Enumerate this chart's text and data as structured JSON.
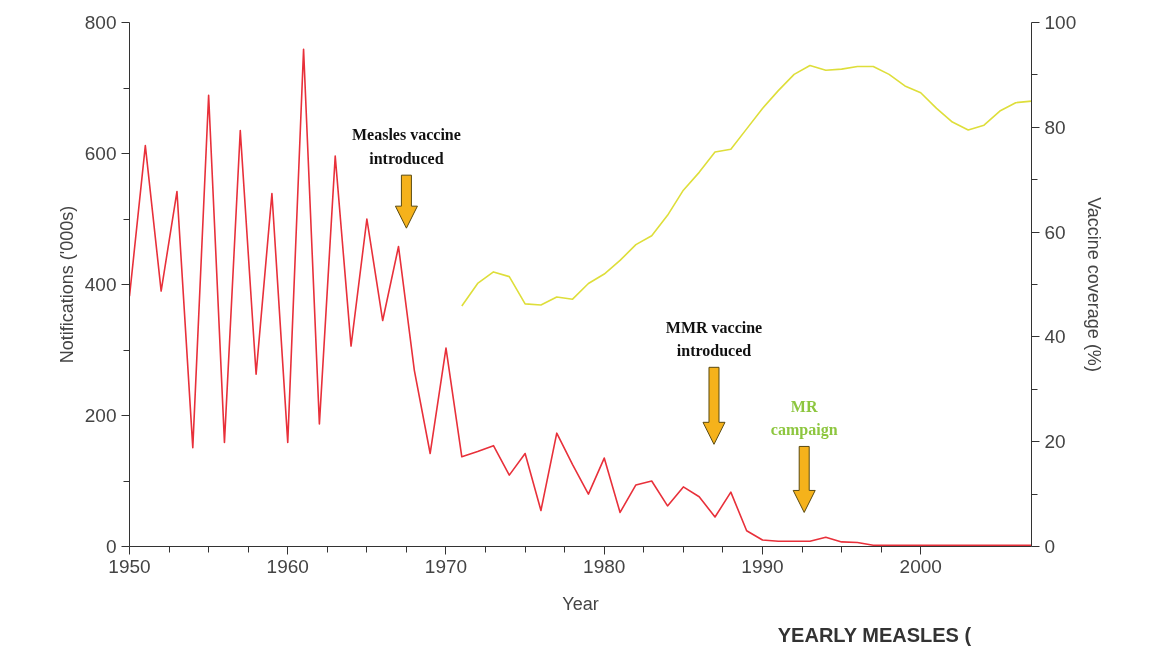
{
  "chart_data": {
    "type": "line",
    "xlabel": "Year",
    "ylabel": "Notifications ('000s)",
    "y2label": "Vaccine coverage (%)",
    "xlim": [
      1950,
      2007
    ],
    "xticks": [
      1950,
      1960,
      1970,
      1980,
      1990,
      2000
    ],
    "ylim": [
      0,
      800
    ],
    "yticks": [
      0,
      200,
      400,
      600,
      800
    ],
    "y2lim": [
      0,
      100
    ],
    "y2ticks": [
      0,
      20,
      40,
      60,
      80,
      100
    ],
    "grid": false,
    "marker": "none",
    "line_style": "solid",
    "series": [
      {
        "color": "#e8303a",
        "x": [
          1950,
          1951,
          1952,
          1953,
          1954,
          1955,
          1956,
          1957,
          1958,
          1959,
          1960,
          1961,
          1962,
          1963,
          1964,
          1965,
          1966,
          1967,
          1968,
          1969,
          1970,
          1971,
          1972,
          1973,
          1974,
          1975,
          1976,
          1977,
          1978,
          1979,
          1980,
          1981,
          1982,
          1983,
          1984,
          1985,
          1986,
          1987,
          1988,
          1989,
          1990,
          1991,
          1992,
          1993,
          1994,
          1995,
          1996,
          1997,
          1998,
          1999,
          2000,
          2001,
          2002,
          2003,
          2004,
          2005,
          2006,
          2007
        ],
        "values": [
          382,
          612,
          390,
          542,
          151,
          689,
          159,
          635,
          263,
          539,
          159,
          759,
          187,
          596,
          306,
          500,
          345,
          458,
          269,
          142,
          303,
          137,
          145,
          154,
          109,
          142,
          55,
          173,
          125,
          80,
          135,
          52,
          94,
          100,
          62,
          91,
          76,
          45,
          83,
          24,
          10,
          8,
          8,
          8,
          14,
          7,
          6,
          2,
          2,
          2,
          2,
          2,
          2,
          2,
          2,
          2,
          2,
          2
        ]
      },
      {
        "color": "#dede3a",
        "axis": "y2",
        "x": [
          1971,
          1972,
          1973,
          1974,
          1975,
          1976,
          1977,
          1978,
          1979,
          1980,
          1981,
          1982,
          1983,
          1984,
          1985,
          1986,
          1987,
          1988,
          1989,
          1990,
          1991,
          1992,
          1993,
          1994,
          1995,
          1996,
          1997,
          1998,
          1999,
          2000,
          2001,
          2002,
          2003,
          2004,
          2005,
          2006,
          2007
        ],
        "values": [
          45.9,
          50.2,
          52.4,
          51.5,
          46.3,
          46.1,
          47.6,
          47.2,
          50.2,
          52,
          54.6,
          57.6,
          59.3,
          63.2,
          68,
          71.4,
          75.3,
          75.8,
          79.7,
          83.6,
          87,
          90.1,
          91.8,
          90.9,
          91.1,
          91.6,
          91.6,
          90.1,
          87.9,
          86.6,
          83.6,
          81,
          79.5,
          80.4,
          83.1,
          84.7,
          85
        ]
      }
    ],
    "annotations": [
      "Measles vaccine\nintroduced",
      "MMR vaccine\nintroduced",
      "MR\ncampaign",
      "YEARLY MEASLES ("
    ]
  }
}
